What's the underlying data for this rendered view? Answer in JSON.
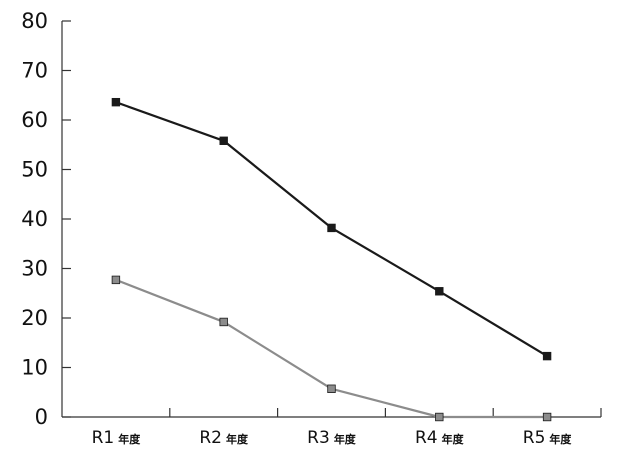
{
  "chart_data": {
    "type": "line",
    "title": "",
    "xlabel": "",
    "ylabel": "",
    "ylim": [
      0,
      80
    ],
    "yticks": [
      0,
      10,
      20,
      30,
      40,
      50,
      60,
      70,
      80
    ],
    "grid": false,
    "legend": "none",
    "categories": [
      {
        "main": "R1",
        "suffix": "年度"
      },
      {
        "main": "R2",
        "suffix": "年度"
      },
      {
        "main": "R3",
        "suffix": "年度"
      },
      {
        "main": "R4",
        "suffix": "年度"
      },
      {
        "main": "R5",
        "suffix": "年度"
      }
    ],
    "series": [
      {
        "color": "#1a1a1a",
        "values": [
          63.6,
          55.8,
          38.2,
          25.4,
          12.3
        ]
      },
      {
        "color": "#8c8c8c",
        "values": [
          27.7,
          19.2,
          5.7,
          0,
          0
        ]
      }
    ]
  }
}
